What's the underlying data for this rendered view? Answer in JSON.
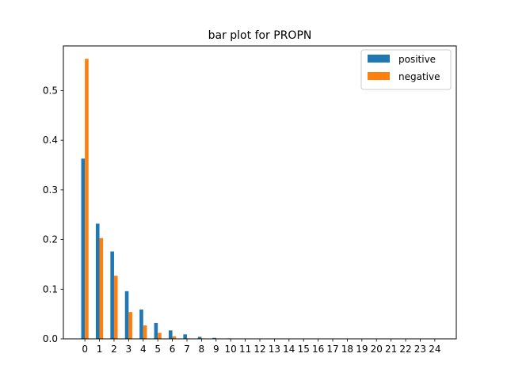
{
  "chart_data": {
    "type": "bar",
    "title": "bar plot for PROPN",
    "xlabel": "",
    "ylabel": "",
    "categories": [
      "0",
      "1",
      "2",
      "3",
      "4",
      "5",
      "6",
      "7",
      "8",
      "9",
      "10",
      "11",
      "12",
      "13",
      "14",
      "15",
      "16",
      "17",
      "18",
      "19",
      "20",
      "21",
      "22",
      "23",
      "24"
    ],
    "series": [
      {
        "name": "positive",
        "color": "#1f77b4",
        "values": [
          0.363,
          0.232,
          0.176,
          0.096,
          0.059,
          0.032,
          0.017,
          0.009,
          0.004,
          0.002,
          0.001,
          0.0,
          0.0,
          0.0,
          0.0,
          0.0,
          0.0,
          0.0,
          0.0,
          0.0,
          0.0,
          0.0,
          0.0,
          0.0,
          0.0
        ]
      },
      {
        "name": "negative",
        "color": "#ff7f0e",
        "values": [
          0.564,
          0.203,
          0.127,
          0.054,
          0.027,
          0.012,
          0.005,
          0.001,
          0.001,
          0.0,
          0.0,
          0.0,
          0.0,
          0.0,
          0.0,
          0.0,
          0.0,
          0.0,
          0.0,
          0.0,
          0.0,
          0.0,
          0.0,
          0.0,
          0.0
        ]
      }
    ],
    "ylim": [
      0,
      0.59
    ],
    "yticks": [
      0.0,
      0.1,
      0.2,
      0.3,
      0.4,
      0.5
    ],
    "ytick_labels": [
      "0.0",
      "0.1",
      "0.2",
      "0.3",
      "0.4",
      "0.5"
    ],
    "grid": false,
    "legend_position": "top-right"
  }
}
